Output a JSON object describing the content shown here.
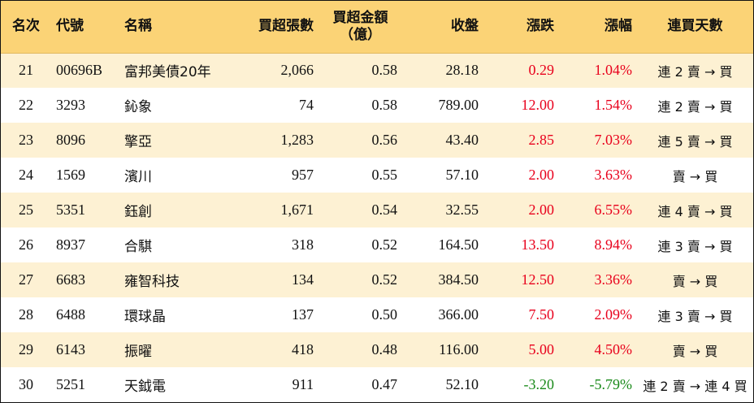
{
  "columns": [
    "名次",
    "代號",
    "名稱",
    "買超張數",
    "買超金額\n（億）",
    "收盤",
    "漲跌",
    "漲幅",
    "連買天數"
  ],
  "rows": [
    {
      "rank": "21",
      "code": "00696B",
      "name": "富邦美債20年",
      "shares": "2,066",
      "amount": "0.58",
      "close": "28.18",
      "change": "0.29",
      "pct": "1.04%",
      "dir": "up",
      "streak": "連 2 賣 → 買"
    },
    {
      "rank": "22",
      "code": "3293",
      "name": "鈊象",
      "shares": "74",
      "amount": "0.58",
      "close": "789.00",
      "change": "12.00",
      "pct": "1.54%",
      "dir": "up",
      "streak": "連 2 賣 → 買"
    },
    {
      "rank": "23",
      "code": "8096",
      "name": "擎亞",
      "shares": "1,283",
      "amount": "0.56",
      "close": "43.40",
      "change": "2.85",
      "pct": "7.03%",
      "dir": "up",
      "streak": "連 5 賣 → 買"
    },
    {
      "rank": "24",
      "code": "1569",
      "name": "濱川",
      "shares": "957",
      "amount": "0.55",
      "close": "57.10",
      "change": "2.00",
      "pct": "3.63%",
      "dir": "up",
      "streak": "賣 → 買"
    },
    {
      "rank": "25",
      "code": "5351",
      "name": "鈺創",
      "shares": "1,671",
      "amount": "0.54",
      "close": "32.55",
      "change": "2.00",
      "pct": "6.55%",
      "dir": "up",
      "streak": "連 4 賣 → 買"
    },
    {
      "rank": "26",
      "code": "8937",
      "name": "合騏",
      "shares": "318",
      "amount": "0.52",
      "close": "164.50",
      "change": "13.50",
      "pct": "8.94%",
      "dir": "up",
      "streak": "連 3 賣 → 買"
    },
    {
      "rank": "27",
      "code": "6683",
      "name": "雍智科技",
      "shares": "134",
      "amount": "0.52",
      "close": "384.50",
      "change": "12.50",
      "pct": "3.36%",
      "dir": "up",
      "streak": "賣 → 買"
    },
    {
      "rank": "28",
      "code": "6488",
      "name": "環球晶",
      "shares": "137",
      "amount": "0.50",
      "close": "366.00",
      "change": "7.50",
      "pct": "2.09%",
      "dir": "up",
      "streak": "連 3 賣 → 買"
    },
    {
      "rank": "29",
      "code": "6143",
      "name": "振曜",
      "shares": "418",
      "amount": "0.48",
      "close": "116.00",
      "change": "5.00",
      "pct": "4.50%",
      "dir": "up",
      "streak": "賣 → 買"
    },
    {
      "rank": "30",
      "code": "5251",
      "name": "天鉞電",
      "shares": "911",
      "amount": "0.47",
      "close": "52.10",
      "change": "-3.20",
      "pct": "-5.79%",
      "dir": "down",
      "streak": "連 2 賣 → 連 4 買"
    }
  ],
  "colors": {
    "header_bg": "#fbd376",
    "stripe_bg": "#fdf1d3",
    "up": "#e8001c",
    "down": "#1a8a1a"
  }
}
